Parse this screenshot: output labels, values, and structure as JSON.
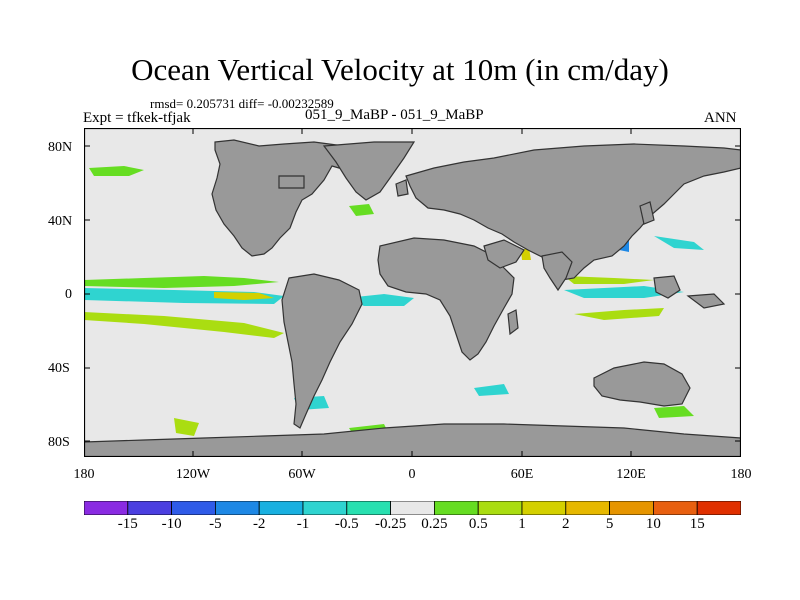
{
  "title": "Ocean Vertical Velocity at 10m (in cm/day)",
  "stats_line": "rmsd= 0.205731 diff= -0.00232589",
  "expt_label": "Expt = tfkek-tfjak",
  "case_label": "051_9_MaBP - 051_9_MaBP",
  "season_label": "ANN",
  "lat_labels": [
    "80N",
    "40N",
    "0",
    "40S",
    "80S"
  ],
  "lon_labels": [
    "180",
    "120W",
    "60W",
    "0",
    "60E",
    "120E",
    "180"
  ],
  "colorbar": {
    "colors": [
      "#8a2be2",
      "#4b3fe0",
      "#2f5be8",
      "#1e88e5",
      "#18b0e0",
      "#2fd4d0",
      "#28e0b0",
      "#e8e8e8",
      "#66dd22",
      "#aadd11",
      "#d4d000",
      "#e6b800",
      "#e69500",
      "#e86010",
      "#e03000"
    ],
    "labels": [
      "-15",
      "-10",
      "-5",
      "-2",
      "-1",
      "-0.5",
      "-0.25",
      "0.25",
      "0.5",
      "1",
      "2",
      "5",
      "10",
      "15"
    ]
  },
  "map_colors": {
    "ocean": "#e8e8e8",
    "land": "#999999",
    "coast": "#333333"
  }
}
